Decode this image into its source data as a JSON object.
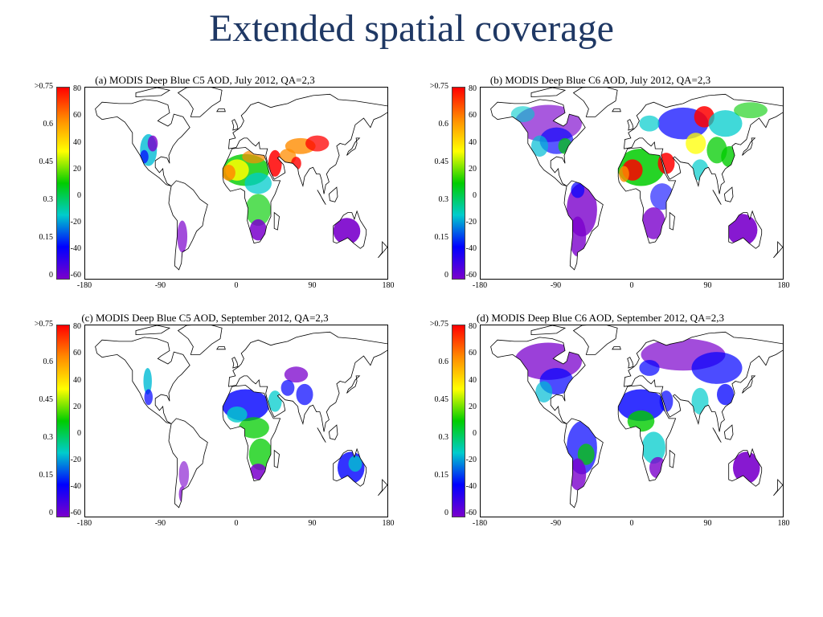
{
  "slide": {
    "title": "Extended spatial coverage"
  },
  "colorbar": {
    "labels": [
      ">0.75",
      "0.6",
      "0.45",
      "0.3",
      "0.15",
      "0"
    ],
    "colors": [
      "#ff0000",
      "#ff8c00",
      "#ffff00",
      "#00cc00",
      "#00cccc",
      "#0000ff",
      "#7a00cc"
    ]
  },
  "axes": {
    "x_ticks": [
      "-180",
      "-90",
      "0",
      "90",
      "180"
    ],
    "y_ticks": [
      "80",
      "60",
      "40",
      "20",
      "0",
      "-20",
      "-40",
      "-60"
    ]
  },
  "panels": [
    {
      "title": "(a) MODIS Deep Blue C5 AOD, July 2012, QA=2,3"
    },
    {
      "title": "(b) MODIS Deep Blue C6 AOD, July 2012, QA=2,3"
    },
    {
      "title": "(c) MODIS Deep Blue C5 AOD, September 2012, QA=2,3"
    },
    {
      "title": "(d) MODIS Deep Blue C6 AOD, September 2012, QA=2,3"
    }
  ]
}
